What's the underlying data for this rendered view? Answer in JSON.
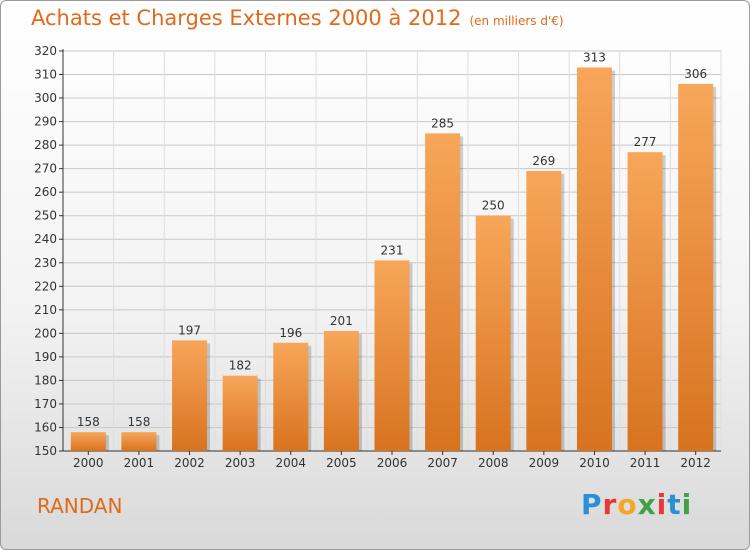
{
  "header": {
    "title": "Achats et Charges Externes 2000 à 2012",
    "subtitle": "(en milliers d'€)"
  },
  "footer": {
    "city": "RANDAN",
    "logo_text": "Proxiti"
  },
  "colors": {
    "accent": "#e06a1a",
    "bar_light": "#f7a65a",
    "bar_dark": "#d8731f",
    "grid": "#c8c8c8"
  },
  "chart_data": {
    "type": "bar",
    "title": "Achats et Charges Externes 2000 à 2012",
    "subtitle": "(en milliers d'€)",
    "categories": [
      "2000",
      "2001",
      "2002",
      "2003",
      "2004",
      "2005",
      "2006",
      "2007",
      "2008",
      "2009",
      "2010",
      "2011",
      "2012"
    ],
    "values": [
      158,
      158,
      197,
      182,
      196,
      201,
      231,
      285,
      250,
      269,
      313,
      277,
      306
    ],
    "ylim": [
      150,
      320
    ],
    "yticks": [
      150,
      160,
      170,
      180,
      190,
      200,
      210,
      220,
      230,
      240,
      250,
      260,
      270,
      280,
      290,
      300,
      310,
      320
    ],
    "grid": true,
    "data_labels": true
  }
}
